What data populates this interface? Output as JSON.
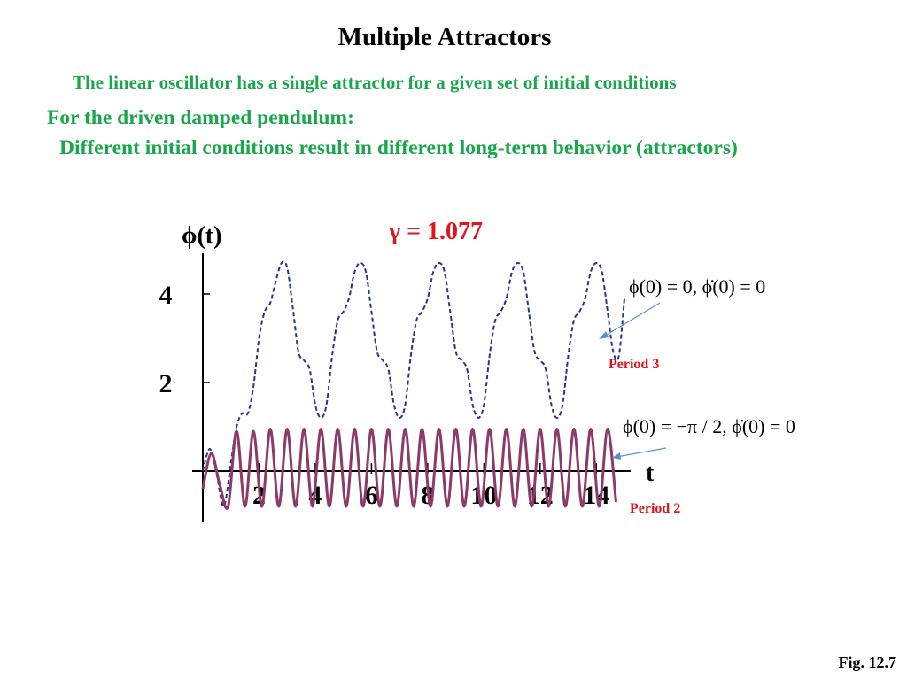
{
  "slide": {
    "title": "Multiple Attractors",
    "subtitle_linear": "The linear oscillator has a single attractor for a given set of initial conditions",
    "subtitle_pendulum_heading": "For the driven damped pendulum:",
    "subtitle_pendulum_detail": "Different initial conditions result in different long-term behavior (attractors)",
    "figure_ref": "Fig. 12.7",
    "colors": {
      "green_text": "#1aa64a",
      "red_text": "#e0141e",
      "dashed_series": "#2e3192",
      "solid_series": "#8b3a6a",
      "arrow": "#5b8fc9"
    }
  },
  "chart_data": {
    "type": "line",
    "title": "γ = 1.077",
    "xlabel": "t",
    "ylabel": "ϕ(t)",
    "x_ticks": [
      "2",
      "4",
      "6",
      "8",
      "10",
      "12",
      "14"
    ],
    "y_ticks": [
      "2",
      "4"
    ],
    "xlim": [
      0,
      15
    ],
    "ylim": [
      -1.1,
      5
    ],
    "grid": false,
    "series": [
      {
        "name": "ϕ(0) = 0,    ϕ̇(0) = 0",
        "annotation": "Period 3",
        "style": "dashed",
        "x": [
          0,
          0.25,
          0.5,
          0.75,
          1.0,
          1.2,
          1.4,
          1.6,
          1.8,
          2.0,
          2.2,
          2.4,
          2.6,
          2.8,
          3.0,
          3.2,
          3.4,
          3.6,
          3.8,
          4.0,
          4.2,
          4.4,
          4.6,
          4.8,
          5.0,
          5.2,
          5.4,
          5.6,
          5.8,
          6.0,
          6.2,
          6.4,
          6.6,
          6.8,
          7.0,
          7.2,
          7.4,
          7.6,
          7.8,
          8.0,
          8.2,
          8.4,
          8.6,
          8.8,
          9.0,
          9.2,
          9.4,
          9.6,
          9.8,
          10.0,
          10.2,
          10.4,
          10.6,
          10.8,
          11.0,
          11.2,
          11.4,
          11.6,
          11.8,
          12.0,
          12.2,
          12.4,
          12.6,
          12.8,
          13.0,
          13.2,
          13.4,
          13.6,
          13.8,
          14.0,
          14.2,
          14.4,
          14.6,
          14.8,
          15.0
        ],
        "y": [
          0,
          0.5,
          -0.1,
          -0.8,
          0.2,
          1.0,
          1.3,
          1.3,
          1.9,
          3.0,
          3.6,
          3.8,
          4.3,
          4.7,
          4.6,
          3.7,
          2.7,
          2.5,
          2.3,
          1.5,
          1.2,
          1.5,
          2.6,
          3.4,
          3.6,
          3.9,
          4.5,
          4.7,
          4.5,
          3.6,
          2.7,
          2.5,
          2.3,
          1.5,
          1.2,
          1.5,
          2.6,
          3.4,
          3.6,
          3.9,
          4.5,
          4.7,
          4.5,
          3.6,
          2.7,
          2.5,
          2.3,
          1.5,
          1.2,
          1.5,
          2.6,
          3.4,
          3.6,
          3.9,
          4.5,
          4.7,
          4.5,
          3.6,
          2.7,
          2.5,
          2.3,
          1.5,
          1.2,
          1.5,
          2.6,
          3.4,
          3.6,
          3.9,
          4.5,
          4.7,
          4.5,
          3.6,
          2.7,
          2.6,
          3.9
        ]
      },
      {
        "name": "ϕ(0) = −π / 2,  ϕ̇(0) = 0",
        "annotation": "Period 2",
        "style": "solid",
        "x": [
          0,
          0.3,
          0.6,
          0.9,
          1.2,
          1.5,
          1.8,
          2.1,
          2.4,
          2.7,
          3.0,
          3.3,
          3.6,
          3.9,
          4.2,
          4.5,
          4.8,
          5.1,
          5.4,
          5.7,
          6.0,
          6.3,
          6.6,
          6.9,
          7.2,
          7.5,
          7.8,
          8.1,
          8.4,
          8.7,
          9.0,
          9.3,
          9.6,
          9.9,
          10.2,
          10.5,
          10.8,
          11.1,
          11.4,
          11.7,
          12.0,
          12.3,
          12.6,
          12.9,
          13.2,
          13.5,
          13.8,
          14.1,
          14.4,
          14.7
        ],
        "y": [
          -0.4,
          0.4,
          -0.3,
          -0.8,
          0.9,
          -0.8,
          0.9,
          -0.8,
          0.95,
          -0.8,
          0.95,
          -0.8,
          0.95,
          -0.8,
          0.95,
          -0.8,
          0.95,
          -0.8,
          0.95,
          -0.8,
          0.95,
          -0.8,
          0.95,
          -0.8,
          0.95,
          -0.8,
          0.95,
          -0.8,
          0.95,
          -0.8,
          0.95,
          -0.8,
          0.95,
          -0.8,
          0.95,
          -0.8,
          0.95,
          -0.8,
          0.95,
          -0.8,
          0.95,
          -0.8,
          0.95,
          -0.8,
          0.95,
          -0.8,
          0.95,
          -0.8,
          0.95,
          -0.7
        ]
      }
    ]
  }
}
